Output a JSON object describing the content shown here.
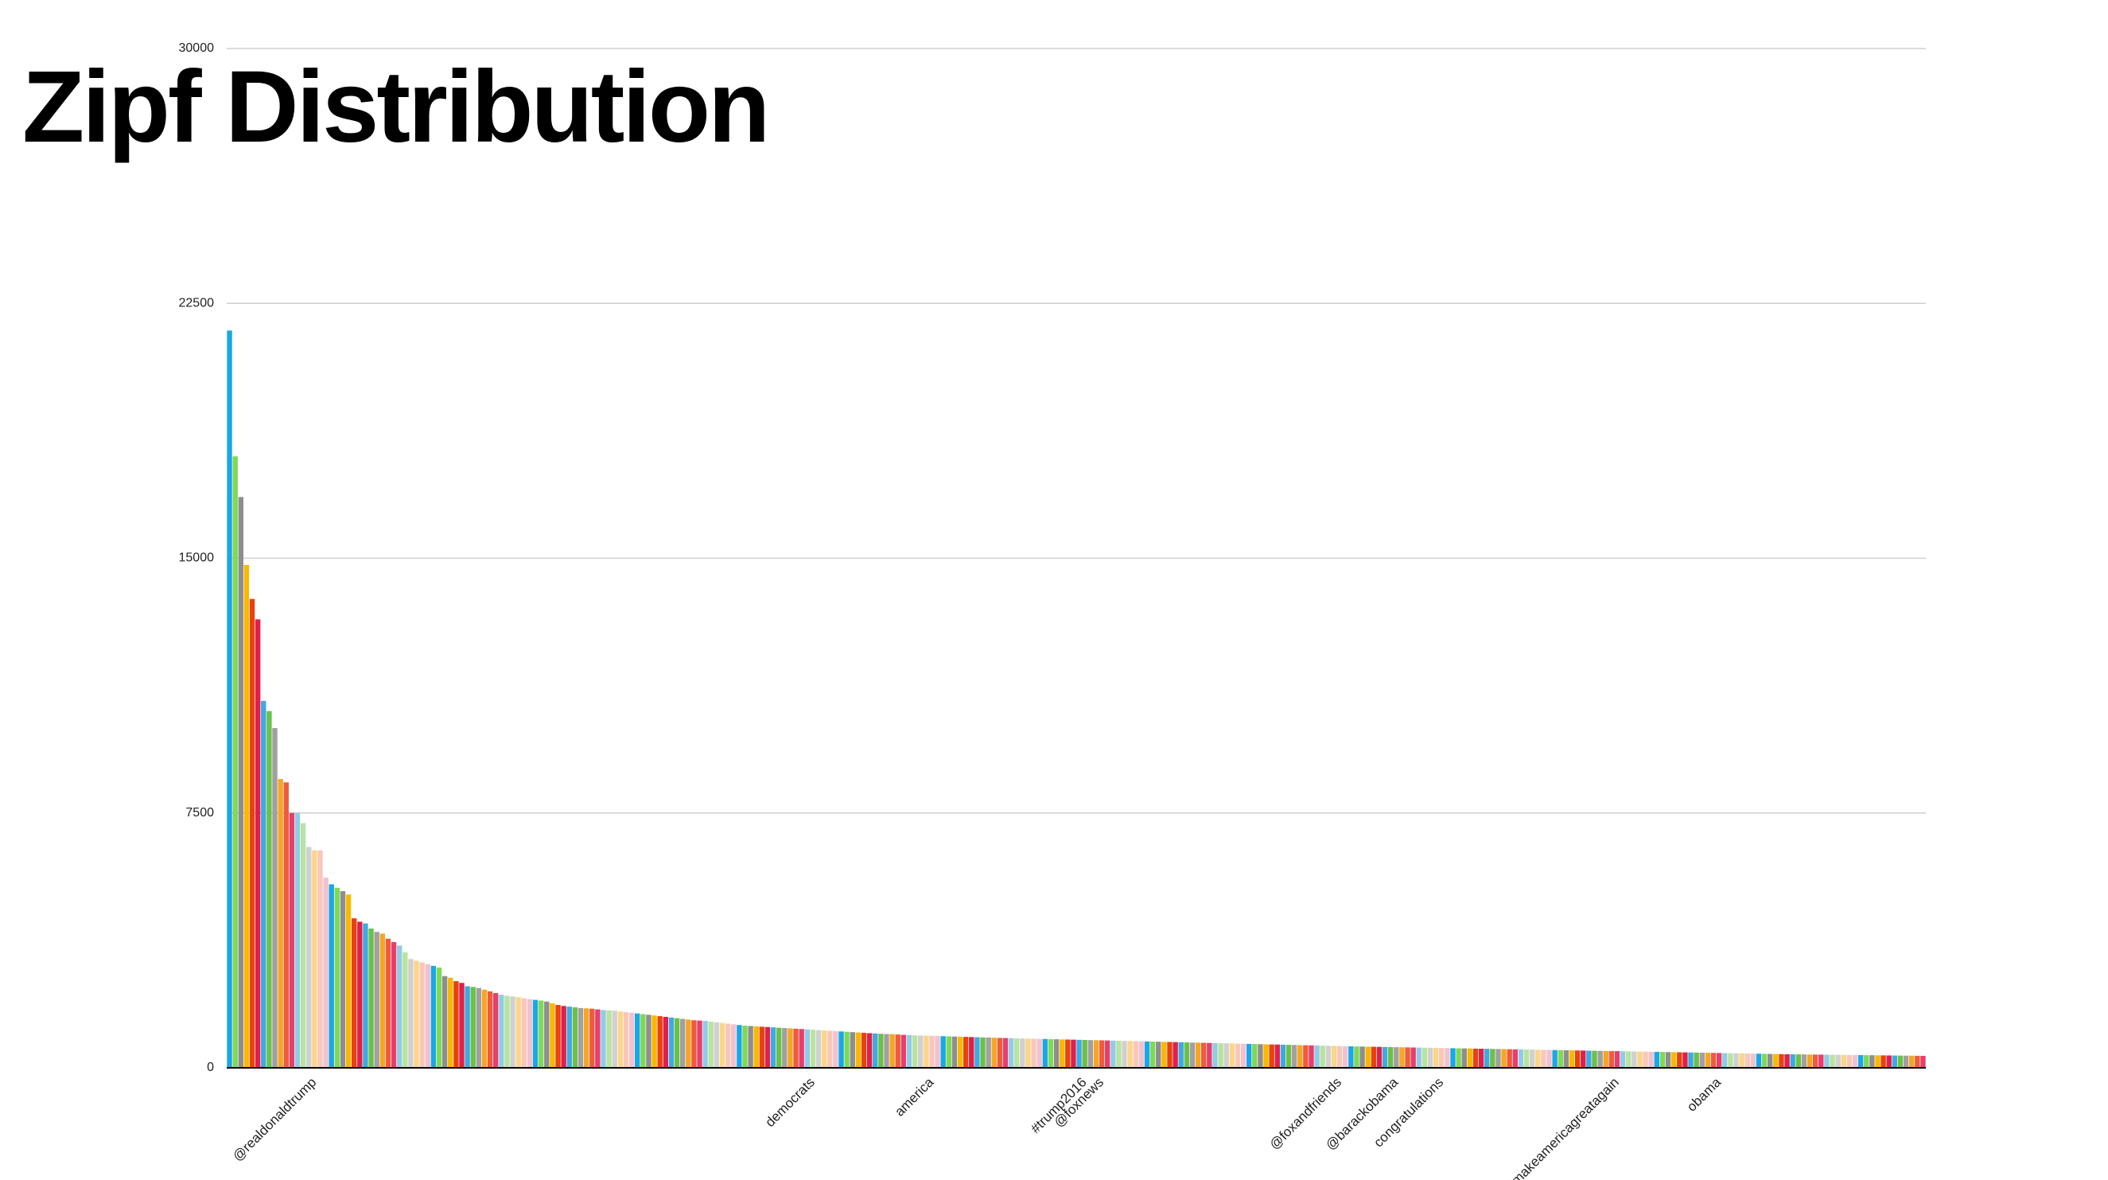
{
  "chart_data": {
    "type": "bar",
    "title": "Zipf Distribution",
    "categories": [
      null,
      null,
      null,
      null,
      null,
      null,
      null,
      null,
      null,
      null,
      null,
      null,
      null,
      null,
      null,
      "@realdonaldtrump",
      null,
      null,
      null,
      null,
      null,
      null,
      null,
      null,
      null,
      null,
      null,
      null,
      null,
      null,
      null,
      null,
      null,
      null,
      null,
      null,
      null,
      null,
      null,
      null,
      null,
      null,
      null,
      null,
      null,
      null,
      null,
      null,
      null,
      null,
      null,
      null,
      null,
      null,
      null,
      null,
      null,
      null,
      null,
      null,
      null,
      null,
      null,
      null,
      null,
      null,
      null,
      null,
      null,
      null,
      null,
      null,
      null,
      null,
      null,
      null,
      null,
      null,
      null,
      null,
      null,
      null,
      null,
      null,
      null,
      null,
      null,
      null,
      null,
      null,
      null,
      null,
      null,
      null,
      null,
      null,
      null,
      null,
      null,
      null,
      null,
      null,
      null,
      "democrats",
      null,
      null,
      null,
      null,
      null,
      null,
      null,
      null,
      null,
      null,
      null,
      null,
      null,
      null,
      null,
      null,
      null,
      null,
      null,
      null,
      "america",
      null,
      null,
      null,
      null,
      null,
      null,
      null,
      null,
      null,
      null,
      null,
      null,
      null,
      null,
      null,
      null,
      null,
      null,
      null,
      null,
      null,
      null,
      null,
      null,
      null,
      null,
      "#trump2016",
      null,
      null,
      "@foxnews",
      null,
      null,
      null,
      null,
      null,
      null,
      null,
      null,
      null,
      null,
      null,
      null,
      null,
      null,
      null,
      null,
      null,
      null,
      null,
      null,
      null,
      null,
      null,
      null,
      null,
      null,
      null,
      null,
      null,
      null,
      null,
      null,
      null,
      null,
      null,
      null,
      null,
      null,
      null,
      null,
      null,
      "@foxandfriends",
      null,
      null,
      null,
      null,
      null,
      null,
      null,
      null,
      null,
      "@barackobama",
      null,
      null,
      null,
      null,
      null,
      null,
      null,
      "congratulations",
      null,
      null,
      null,
      null,
      null,
      null,
      null,
      null,
      null,
      null,
      null,
      null,
      null,
      null,
      null,
      null,
      null,
      null,
      null,
      null,
      null,
      null,
      null,
      null,
      null,
      null,
      null,
      null,
      null,
      null,
      "#makeamericagreatagain",
      null,
      null,
      null,
      null,
      null,
      null,
      null,
      null,
      null,
      null,
      null,
      null,
      null,
      null,
      null,
      null,
      null,
      "obama",
      null,
      null,
      null,
      null,
      null,
      null,
      null,
      null,
      null,
      null,
      null,
      null,
      null,
      null,
      null,
      null,
      null,
      null,
      null,
      null,
      null,
      null,
      null,
      null,
      null,
      null,
      null,
      null,
      null,
      null,
      null,
      null,
      null,
      null,
      null,
      null
    ],
    "values": [
      21700,
      18000,
      16800,
      14800,
      13800,
      13200,
      10800,
      10500,
      10000,
      8500,
      8400,
      7500,
      7500,
      7200,
      6500,
      6400,
      6400,
      5600,
      5400,
      5300,
      5200,
      5100,
      4400,
      4300,
      4250,
      4100,
      4000,
      3950,
      3800,
      3700,
      3600,
      3400,
      3200,
      3150,
      3100,
      3050,
      3000,
      2950,
      2700,
      2650,
      2550,
      2500,
      2400,
      2380,
      2350,
      2300,
      2250,
      2200,
      2150,
      2120,
      2100,
      2080,
      2050,
      2020,
      2000,
      1980,
      1950,
      1900,
      1850,
      1820,
      1800,
      1780,
      1760,
      1750,
      1740,
      1720,
      1700,
      1690,
      1680,
      1660,
      1640,
      1620,
      1600,
      1580,
      1560,
      1540,
      1520,
      1500,
      1480,
      1460,
      1440,
      1420,
      1400,
      1390,
      1380,
      1360,
      1340,
      1320,
      1300,
      1280,
      1260,
      1240,
      1230,
      1220,
      1210,
      1200,
      1190,
      1180,
      1170,
      1160,
      1150,
      1140,
      1130,
      1120,
      1110,
      1100,
      1090,
      1080,
      1070,
      1060,
      1050,
      1040,
      1030,
      1020,
      1010,
      1000,
      995,
      990,
      980,
      970,
      960,
      955,
      950,
      945,
      940,
      935,
      930,
      925,
      920,
      915,
      910,
      905,
      900,
      895,
      890,
      885,
      880,
      876,
      872,
      868,
      864,
      860,
      856,
      852,
      848,
      844,
      840,
      836,
      832,
      828,
      824,
      820,
      816,
      812,
      808,
      804,
      800,
      796,
      792,
      788,
      784,
      780,
      776,
      772,
      768,
      764,
      760,
      756,
      752,
      748,
      744,
      740,
      736,
      732,
      728,
      724,
      720,
      716,
      712,
      708,
      704,
      700,
      696,
      692,
      688,
      684,
      680,
      676,
      672,
      668,
      664,
      660,
      656,
      652,
      648,
      644,
      640,
      636,
      632,
      628,
      625,
      622,
      619,
      616,
      613,
      610,
      607,
      604,
      601,
      598,
      595,
      592,
      589,
      586,
      583,
      580,
      577,
      574,
      571,
      568,
      565,
      562,
      559,
      556,
      553,
      550,
      547,
      544,
      541,
      538,
      535,
      532,
      529,
      526,
      523,
      520,
      517,
      514,
      511,
      508,
      505,
      502,
      499,
      496,
      493,
      490,
      487,
      484,
      481,
      478,
      475,
      472,
      469,
      466,
      463,
      460,
      457,
      454,
      451,
      448,
      445,
      442,
      439,
      436,
      433,
      430,
      427,
      424,
      421,
      418,
      415,
      412,
      409,
      406,
      403,
      400,
      398,
      396,
      394,
      392,
      390,
      388,
      386,
      384,
      382,
      380,
      378,
      376,
      374,
      372,
      370,
      368,
      366,
      364,
      362,
      360,
      358,
      356,
      354,
      352
    ],
    "colors": [
      "#1aa7e6",
      "#7ed957",
      "#8e8e8e",
      "#f9b800",
      "#e8420f",
      "#e0204a",
      "#3fa9e0",
      "#6cc04a",
      "#a0a0a0",
      "#f5a623",
      "#ef5b3b",
      "#e83e6c",
      "#93cbe6",
      "#b8e3a0",
      "#d0d0d0",
      "#fbd58a",
      "#f9c7b8",
      "#f0c2cf"
    ],
    "ylim": [
      0,
      30000
    ],
    "yticks": [
      0,
      7500,
      15000,
      22500,
      30000
    ],
    "grid": true
  }
}
